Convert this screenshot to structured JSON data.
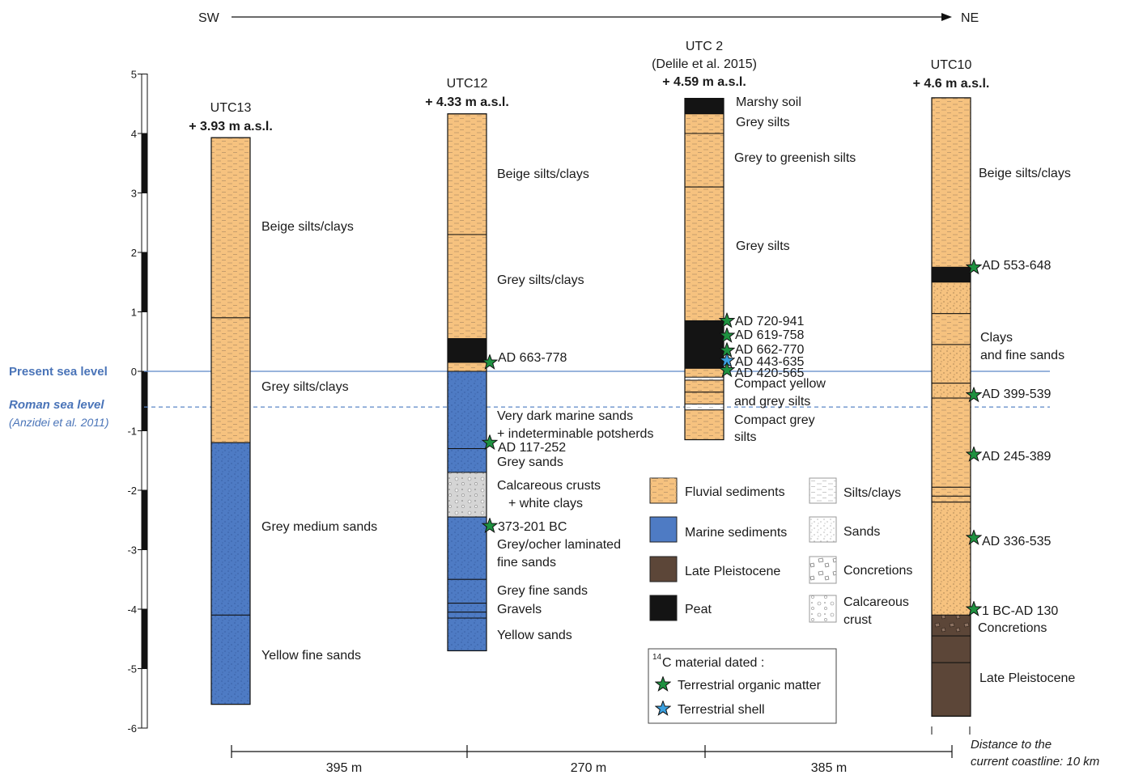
{
  "direction": {
    "start": "SW",
    "end": "NE"
  },
  "scale_ticks": [
    "5",
    "4",
    "3",
    "2",
    "1",
    "0",
    "-1",
    "-2",
    "-3",
    "-4",
    "-5",
    "-6"
  ],
  "sea_levels": {
    "present": {
      "label": "Present sea level",
      "value": 0
    },
    "roman": {
      "label": "Roman sea level",
      "value": -0.6,
      "ref": "(Anzidei et al. 2011)"
    }
  },
  "columns": [
    {
      "id": "UTC13",
      "title": "UTC13",
      "elevation": "+ 3.93 m a.s.l.",
      "top": 3.93,
      "bottom": -5.6,
      "layers": [
        {
          "top": 3.93,
          "bottom": 0.9,
          "type": "fluvial"
        },
        {
          "top": 0.9,
          "bottom": -1.2,
          "type": "fluvial"
        },
        {
          "top": -1.2,
          "bottom": -4.1,
          "type": "marine"
        },
        {
          "top": -4.1,
          "bottom": -5.6,
          "type": "marine"
        }
      ],
      "labels": [
        "Beige silts/clays",
        "Grey silts/clays",
        "Grey medium sands",
        "Yellow fine sands"
      ]
    },
    {
      "id": "UTC12",
      "title": "UTC12",
      "elevation": "+ 4.33 m a.s.l.",
      "top": 4.33,
      "bottom": -4.7,
      "layers": [
        {
          "top": 4.33,
          "bottom": 2.3,
          "type": "fluvial"
        },
        {
          "top": 2.3,
          "bottom": 0.55,
          "type": "fluvial"
        },
        {
          "top": 0.55,
          "bottom": 0.15,
          "type": "peat"
        },
        {
          "top": 0.15,
          "bottom": 0.0,
          "type": "fluvial"
        },
        {
          "top": 0.0,
          "bottom": -1.3,
          "type": "marine"
        },
        {
          "top": -1.3,
          "bottom": -1.7,
          "type": "marine"
        },
        {
          "top": -1.7,
          "bottom": -2.45,
          "type": "calcareous"
        },
        {
          "top": -2.45,
          "bottom": -3.5,
          "type": "marine"
        },
        {
          "top": -3.5,
          "bottom": -3.9,
          "type": "marine"
        },
        {
          "top": -3.9,
          "bottom": -4.05,
          "type": "marine"
        },
        {
          "top": -4.05,
          "bottom": -4.15,
          "type": "marine"
        },
        {
          "top": -4.15,
          "bottom": -4.7,
          "type": "marine"
        }
      ],
      "labels": [
        "Beige silts/clays",
        "Grey silts/clays",
        "Very dark marine sands",
        "+ indeterminable potsherds",
        "Grey sands",
        "Calcareous crusts",
        "+ white clays",
        "Grey/ocher laminated",
        "fine sands",
        "Grey fine sands",
        "Gravels",
        "Yellow sands"
      ],
      "dates": [
        {
          "label": "AD 663-778",
          "at": 0.15,
          "material": "organic"
        },
        {
          "label": "AD 117-252",
          "at": -1.2,
          "material": "organic"
        },
        {
          "label": "373-201 BC",
          "at": -2.6,
          "material": "organic"
        }
      ]
    },
    {
      "id": "UTC2",
      "title": "UTC 2",
      "citation": "(Delile et al. 2015)",
      "elevation": "+ 4.59 m a.s.l.",
      "top": 4.59,
      "bottom": -1.15,
      "layers": [
        {
          "top": 4.59,
          "bottom": 4.33,
          "type": "peat"
        },
        {
          "top": 4.33,
          "bottom": 4.0,
          "type": "fluvial"
        },
        {
          "top": 4.0,
          "bottom": 3.1,
          "type": "fluvial"
        },
        {
          "top": 3.1,
          "bottom": 0.85,
          "type": "fluvial"
        },
        {
          "top": 0.85,
          "bottom": 0.05,
          "type": "peat"
        },
        {
          "top": 0.05,
          "bottom": -0.1,
          "type": "fluvial"
        },
        {
          "top": -0.1,
          "bottom": -0.15,
          "type": "silt"
        },
        {
          "top": -0.15,
          "bottom": -0.35,
          "type": "fluvial"
        },
        {
          "top": -0.35,
          "bottom": -0.55,
          "type": "fluvial"
        },
        {
          "top": -0.55,
          "bottom": -0.65,
          "type": "silt"
        },
        {
          "top": -0.65,
          "bottom": -1.15,
          "type": "fluvial"
        }
      ],
      "labels": [
        "Marshy soil",
        "Grey silts",
        "Grey to greenish silts",
        "Grey silts",
        "Compact yellow",
        "and grey silts",
        "Compact grey",
        "silts"
      ],
      "dates": [
        {
          "label": "AD 720-941",
          "at": 0.85,
          "material": "organic"
        },
        {
          "label": "AD 619-758",
          "at": 0.6,
          "material": "organic"
        },
        {
          "label": "AD 662-770",
          "at": 0.35,
          "material": "organic"
        },
        {
          "label": "AD 443-635",
          "at": 0.18,
          "material": "shell"
        },
        {
          "label": "AD 420-565",
          "at": 0.02,
          "material": "organic"
        }
      ]
    },
    {
      "id": "UTC10",
      "title": "UTC10",
      "elevation": "+ 4.6 m a.s.l.",
      "top": 4.6,
      "bottom": -5.8,
      "layers": [
        {
          "top": 4.6,
          "bottom": 1.75,
          "type": "fluvial"
        },
        {
          "top": 1.75,
          "bottom": 1.5,
          "type": "peat"
        },
        {
          "top": 1.5,
          "bottom": 0.97,
          "type": "fluvial_sand"
        },
        {
          "top": 0.97,
          "bottom": 0.45,
          "type": "fluvial"
        },
        {
          "top": 0.45,
          "bottom": -0.2,
          "type": "fluvial_sand"
        },
        {
          "top": -0.2,
          "bottom": -0.45,
          "type": "fluvial_sand"
        },
        {
          "top": -0.45,
          "bottom": -1.95,
          "type": "fluvial"
        },
        {
          "top": -1.95,
          "bottom": -2.1,
          "type": "fluvial"
        },
        {
          "top": -2.1,
          "bottom": -2.2,
          "type": "fluvial"
        },
        {
          "top": -2.2,
          "bottom": -4.1,
          "type": "fluvial_sand"
        },
        {
          "top": -4.1,
          "bottom": -4.45,
          "type": "concretion"
        },
        {
          "top": -4.45,
          "bottom": -4.9,
          "type": "pleistocene"
        },
        {
          "top": -4.9,
          "bottom": -5.8,
          "type": "pleistocene"
        }
      ],
      "labels": [
        "Beige silts/clays",
        "Clays",
        "and fine sands",
        "Concretions",
        "Late Pleistocene"
      ],
      "dates": [
        {
          "label": "AD 553-648",
          "at": 1.75,
          "material": "organic"
        },
        {
          "label": "AD 399-539",
          "at": -0.4,
          "material": "organic"
        },
        {
          "label": "AD 245-389",
          "at": -1.4,
          "material": "organic"
        },
        {
          "label": "AD 336-535",
          "at": -2.8,
          "material": "organic"
        },
        {
          "label": "1 BC-AD 130",
          "at": -4.0,
          "material": "organic"
        }
      ]
    }
  ],
  "legend": {
    "items": [
      {
        "key": "fluvial",
        "label": "Fluvial sediments"
      },
      {
        "key": "marine",
        "label": "Marine sediments"
      },
      {
        "key": "pleistocene",
        "label": "Late Pleistocene"
      },
      {
        "key": "peat",
        "label": "Peat"
      },
      {
        "key": "silt",
        "label": "Silts/clays"
      },
      {
        "key": "sand",
        "label": "Sands"
      },
      {
        "key": "concretion",
        "label": "Concretions"
      },
      {
        "key": "calcareous",
        "label": "Calcareous",
        "label2": "crust"
      }
    ],
    "dated_title_sup": "14",
    "dated_title": "C material dated :",
    "dated_items": [
      {
        "material": "organic",
        "label": "Terrestrial organic matter"
      },
      {
        "material": "shell",
        "label": "Terrestrial shell"
      }
    ]
  },
  "distances": [
    "395 m",
    "270 m",
    "385 m"
  ],
  "coastline_note": [
    "Distance to the",
    "current coastline: 10 km"
  ],
  "colors": {
    "fluvial": "#f6c27f",
    "marine": "#4e7bc4",
    "peat": "#141414",
    "pleistocene": "#5c4638",
    "sea_line": "#5b87c7",
    "green_star": "#1e9140",
    "blue_star": "#3aa0e0"
  }
}
